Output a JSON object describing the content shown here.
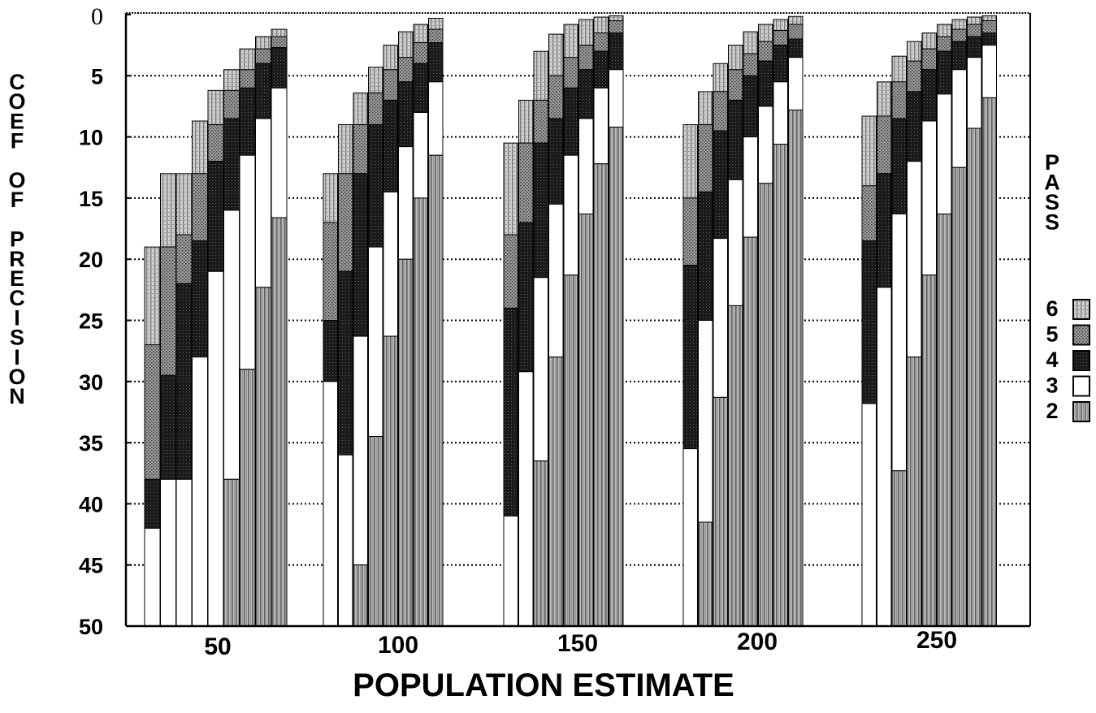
{
  "chart_data": {
    "type": "bar",
    "orientation": "inverted-y",
    "title": "",
    "xlabel": "POPULATION ESTIMATE",
    "ylabel": "COEF OF PRECISION",
    "ylim": [
      0,
      50
    ],
    "y_inverted": true,
    "y_ticks": [
      "0",
      "5",
      "10",
      "15",
      "20",
      "25",
      "30",
      "35",
      "40",
      "45",
      "50"
    ],
    "x_ticks": [
      "50",
      "100",
      "150",
      "200",
      "250"
    ],
    "legend_title": "PASS",
    "legend": [
      {
        "label": "6",
        "pass": 6,
        "pattern": "light-vertical-stripe"
      },
      {
        "label": "5",
        "pass": 5,
        "pattern": "gray-dotted"
      },
      {
        "label": "4",
        "pass": 4,
        "pattern": "dark"
      },
      {
        "label": "3",
        "pass": 3,
        "pattern": "white"
      },
      {
        "label": "2",
        "pass": 2,
        "pattern": "vertical-stripe"
      }
    ],
    "colors": {
      "pass6": "#c2c2c2",
      "pass5": "#8e8e8e",
      "pass4": "#1e1e1e",
      "pass3": "#ffffff",
      "pass2": "#a9a9a9"
    },
    "series": [
      {
        "name": "50",
        "bars": [
          [
            19,
            27,
            38,
            42,
            50
          ],
          [
            13,
            19,
            29.5,
            38,
            50
          ],
          [
            13,
            18,
            22,
            38,
            50
          ],
          [
            8.7,
            13,
            18.5,
            28,
            50
          ],
          [
            6.2,
            9,
            12,
            21,
            50
          ],
          [
            4.5,
            6.2,
            8.5,
            16,
            38
          ],
          [
            2.8,
            4.5,
            6,
            11.5,
            29
          ],
          [
            1.8,
            2.8,
            4,
            8.5,
            22.3
          ],
          [
            1.2,
            1.8,
            2.7,
            6,
            16.6
          ]
        ]
      },
      {
        "name": "100",
        "bars": [
          [
            13,
            17,
            25,
            30,
            50
          ],
          [
            9,
            13,
            21,
            36,
            50
          ],
          [
            6.4,
            9,
            13,
            26.3,
            45
          ],
          [
            4.3,
            6.4,
            9,
            19,
            34.5
          ],
          [
            2.5,
            4.5,
            7,
            14.5,
            26.3
          ],
          [
            1.4,
            3.5,
            5.5,
            10.8,
            20
          ],
          [
            0.8,
            2.3,
            4,
            8,
            15
          ],
          [
            0.3,
            1.2,
            2.3,
            5.5,
            11.5
          ]
        ]
      },
      {
        "name": "150",
        "bars": [
          [
            10.5,
            18,
            24,
            41,
            50
          ],
          [
            7,
            10.5,
            17,
            29.2,
            50
          ],
          [
            3,
            7,
            10.5,
            21.5,
            36.5
          ],
          [
            1.6,
            5,
            8.5,
            15.5,
            28
          ],
          [
            0.8,
            3.5,
            6,
            11.5,
            21.3
          ],
          [
            0.4,
            2.5,
            4.5,
            8.5,
            16.3
          ],
          [
            0.2,
            1.5,
            3,
            6,
            12.2
          ],
          [
            0.1,
            0.5,
            1.5,
            4.5,
            9.2
          ]
        ]
      },
      {
        "name": "200",
        "bars": [
          [
            9,
            15,
            20.5,
            35.5,
            50
          ],
          [
            6.3,
            9,
            14.5,
            25,
            41.5
          ],
          [
            4,
            6.3,
            9.5,
            18.3,
            31.3
          ],
          [
            2.5,
            4.5,
            7,
            13.5,
            23.8
          ],
          [
            1.4,
            3.2,
            5,
            10,
            18.2
          ],
          [
            0.8,
            2.2,
            3.8,
            7.5,
            13.8
          ],
          [
            0.4,
            1.3,
            2.5,
            5.5,
            10.6
          ],
          [
            0.15,
            0.8,
            2,
            3.5,
            7.8
          ]
        ]
      },
      {
        "name": "250",
        "bars": [
          [
            8.3,
            14,
            18.5,
            31.8,
            50
          ],
          [
            5.5,
            8.3,
            13,
            22.3,
            50
          ],
          [
            3.4,
            5.5,
            8.5,
            16.3,
            37.3
          ],
          [
            2.2,
            3.8,
            6.3,
            12,
            28
          ],
          [
            1.5,
            2.8,
            4.5,
            8.7,
            21.3
          ],
          [
            0.8,
            1.8,
            3,
            6.5,
            16.3
          ],
          [
            0.4,
            1.2,
            2.2,
            4.5,
            12.5
          ],
          [
            0.2,
            0.8,
            1.8,
            3.5,
            9.3
          ],
          [
            0.1,
            0.5,
            1.5,
            2.5,
            6.8
          ]
        ]
      }
    ]
  },
  "vertical_labels": {
    "left_chars": [
      "C",
      "O",
      "E",
      "F",
      "",
      "O",
      "F",
      "",
      "P",
      "R",
      "E",
      "C",
      "I",
      "S",
      "I",
      "O",
      "N"
    ],
    "right_chars": [
      "P",
      "A",
      "S",
      "S"
    ]
  }
}
